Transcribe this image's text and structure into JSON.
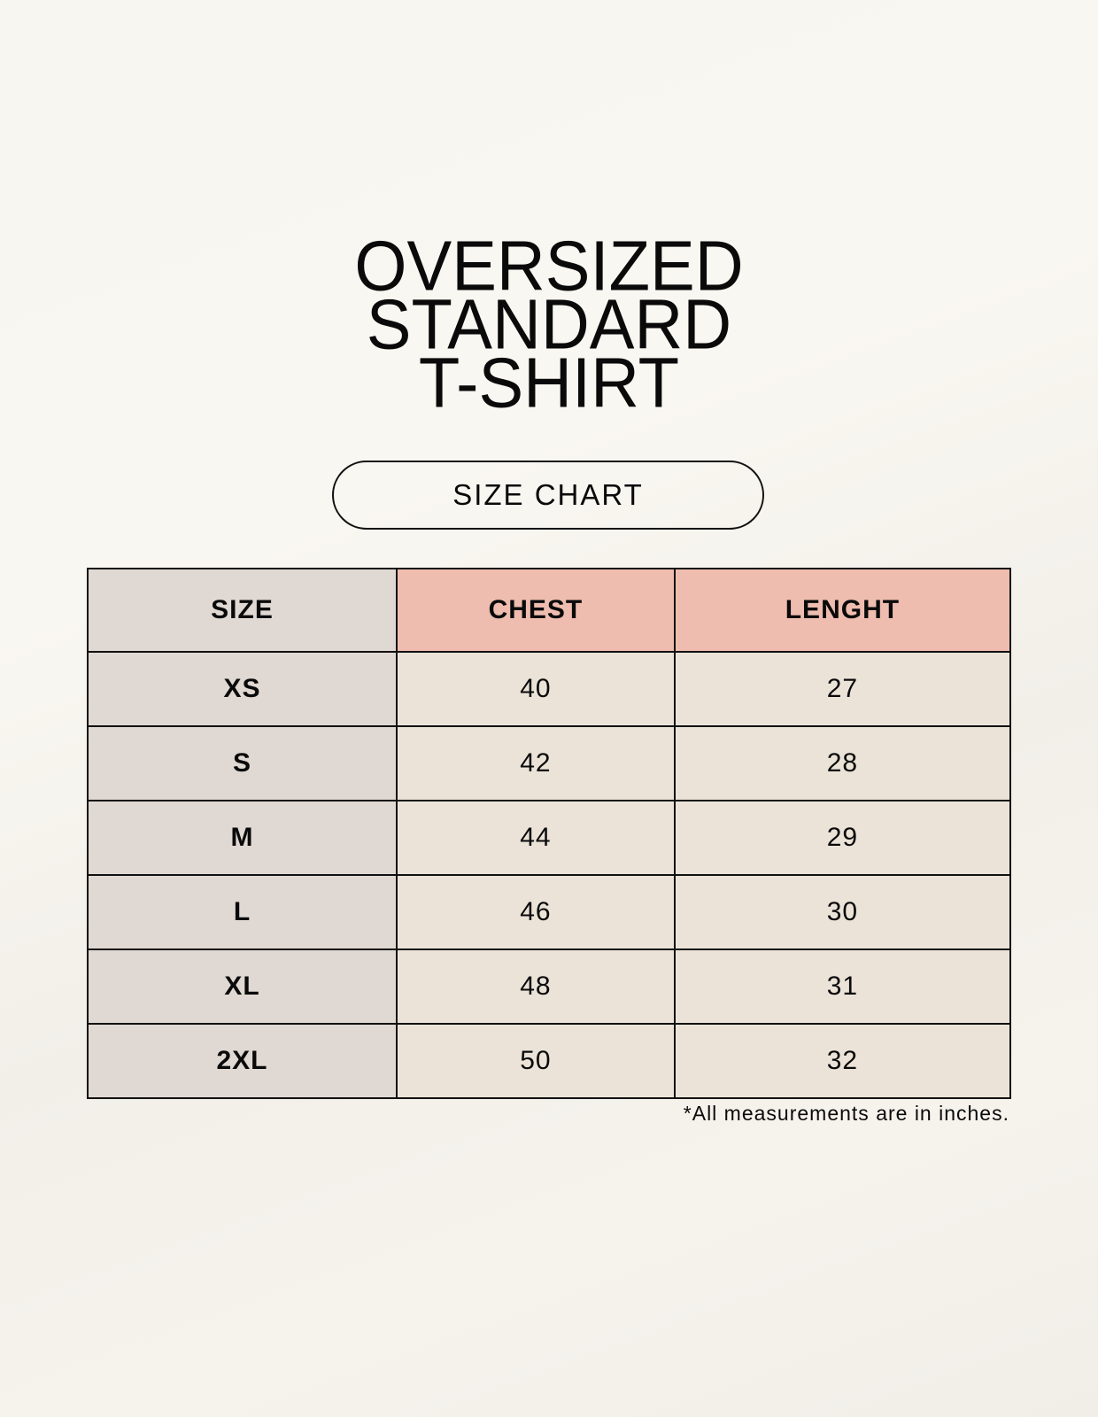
{
  "title_lines": [
    "OVERSIZED",
    "STANDARD",
    "T-SHIRT"
  ],
  "badge": "SIZE CHART",
  "table": {
    "headers": [
      "SIZE",
      "CHEST",
      "LENGHT"
    ],
    "rows": [
      [
        "XS",
        "40",
        "27"
      ],
      [
        "S",
        "42",
        "28"
      ],
      [
        "M",
        "44",
        "29"
      ],
      [
        "L",
        "46",
        "30"
      ],
      [
        "XL",
        "48",
        "31"
      ],
      [
        "2XL",
        "50",
        "32"
      ]
    ]
  },
  "footnote": "*All measurements are in inches.",
  "colors": {
    "size_column": "#e0d8d2",
    "header_accent": "#eebdaf",
    "cell": "#ebe3d8"
  }
}
